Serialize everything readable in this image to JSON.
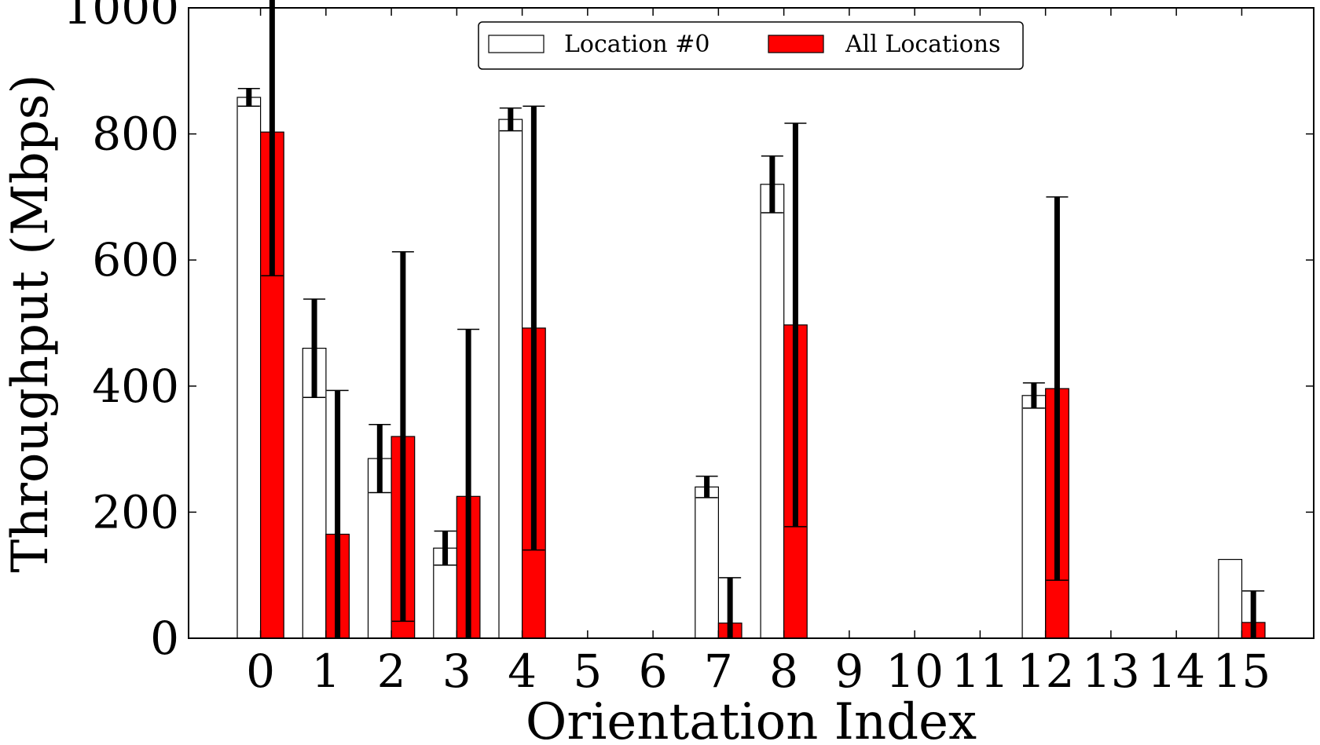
{
  "chart_data": {
    "type": "bar",
    "xlabel": "Orientation Index",
    "ylabel": "Throughput (Mbps)",
    "categories": [
      "0",
      "1",
      "2",
      "3",
      "4",
      "5",
      "6",
      "7",
      "8",
      "9",
      "10",
      "11",
      "12",
      "13",
      "14",
      "15"
    ],
    "ylim": [
      0,
      1000
    ],
    "yticks": [
      0,
      200,
      400,
      600,
      800,
      1000
    ],
    "grid": false,
    "legend_position": "top-center",
    "series": [
      {
        "name": "Location #0",
        "color": "#ffffff",
        "values": [
          858,
          460,
          285,
          143,
          823,
          0,
          0,
          240,
          720,
          0,
          0,
          0,
          385,
          0,
          0,
          125
        ],
        "errors": [
          14,
          78,
          54,
          27,
          18,
          0,
          0,
          17,
          45,
          0,
          0,
          0,
          20,
          0,
          0,
          0
        ]
      },
      {
        "name": "All Locations",
        "color": "#ff0000",
        "values": [
          803,
          165,
          320,
          225,
          492,
          0,
          0,
          24,
          497,
          0,
          0,
          0,
          396,
          0,
          0,
          25
        ],
        "errors": [
          228,
          228,
          293,
          265,
          352,
          0,
          0,
          72,
          320,
          0,
          0,
          0,
          304,
          0,
          0,
          50
        ]
      }
    ]
  }
}
